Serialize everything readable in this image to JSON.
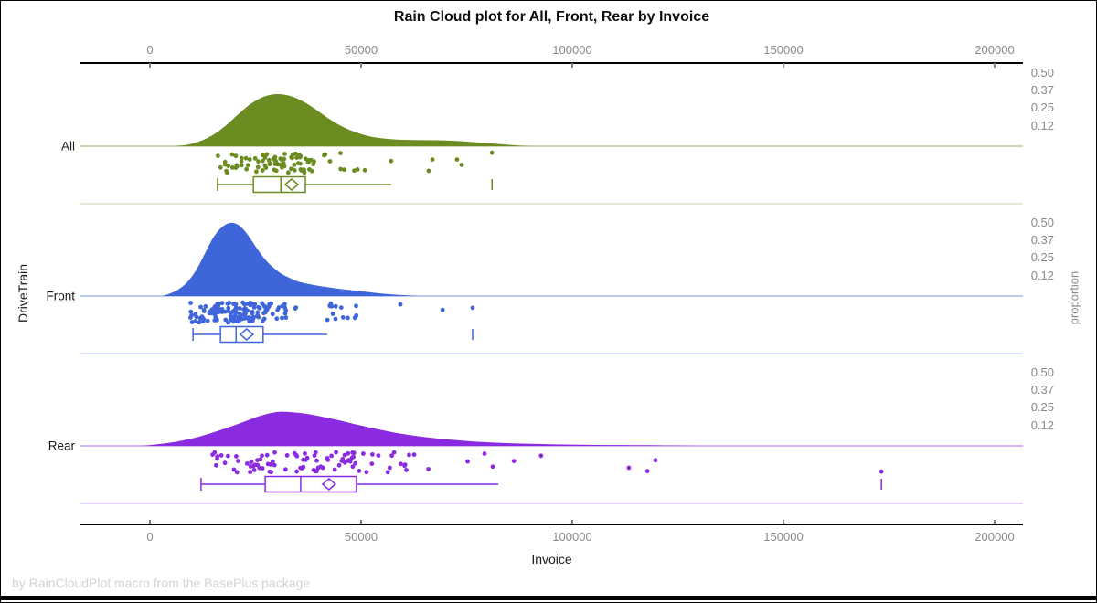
{
  "title": "Rain Cloud plot for All, Front, Rear by Invoice",
  "footnote": "by RainCloudPlot macro from the BasePlus package",
  "axes": {
    "x_label": "Invoice",
    "y_label": "DriveTrain",
    "y2_label": "proportion",
    "x_tick_values": [
      0,
      50000,
      100000,
      150000,
      200000
    ],
    "x_tick_labels": [
      "0",
      "50000",
      "100000",
      "150000",
      "200000"
    ],
    "proportion_tick_labels": [
      "0.50",
      "0.37",
      "0.25",
      "0.12"
    ]
  },
  "colors": {
    "axis_line": "#000000",
    "tick_mark": "#808080",
    "tick_label": "#8a8a8a",
    "category_label": "#1a1a1a",
    "box_fill": "#ffffff"
  },
  "chart_data": {
    "type": "raincloud",
    "x_variable": "Invoice",
    "group_variable": "DriveTrain",
    "x_ticks": [
      0,
      50000,
      100000,
      150000,
      200000
    ],
    "proportion_ticks": [
      0.5,
      0.37,
      0.25,
      0.12
    ],
    "series": [
      {
        "name": "All",
        "color": "#6b8c21",
        "seed": 11,
        "density": [
          [
            6000,
            0
          ],
          [
            9000,
            0.03
          ],
          [
            12000,
            0.1
          ],
          [
            15000,
            0.22
          ],
          [
            18000,
            0.4
          ],
          [
            21000,
            0.62
          ],
          [
            24000,
            0.82
          ],
          [
            27000,
            0.95
          ],
          [
            30000,
            1.0
          ],
          [
            33000,
            0.97
          ],
          [
            36000,
            0.87
          ],
          [
            39000,
            0.72
          ],
          [
            42000,
            0.55
          ],
          [
            45000,
            0.4
          ],
          [
            48000,
            0.29
          ],
          [
            51000,
            0.21
          ],
          [
            54000,
            0.16
          ],
          [
            58000,
            0.13
          ],
          [
            62000,
            0.12
          ],
          [
            66000,
            0.115
          ],
          [
            70000,
            0.11
          ],
          [
            74000,
            0.095
          ],
          [
            78000,
            0.07
          ],
          [
            82000,
            0.045
          ],
          [
            86000,
            0.02
          ],
          [
            90000,
            0
          ]
        ],
        "box": {
          "whisker_low": 16000,
          "q1": 24500,
          "median": 31000,
          "q3": 36800,
          "mean": 33550,
          "whisker_high": 57100,
          "far_outlier": 81000
        },
        "rain": {
          "count": 88,
          "min": 16000,
          "max": 51500,
          "extra_points": [
            57100,
            66000,
            66900,
            72700,
            73800,
            81000
          ]
        }
      },
      {
        "name": "Front",
        "color": "#3f66d9",
        "seed": 7,
        "density": [
          [
            3000,
            0
          ],
          [
            5000,
            0.04
          ],
          [
            7000,
            0.1
          ],
          [
            9000,
            0.2
          ],
          [
            11000,
            0.36
          ],
          [
            13000,
            0.58
          ],
          [
            15000,
            0.8
          ],
          [
            17000,
            0.94
          ],
          [
            19000,
            1.0
          ],
          [
            21000,
            0.97
          ],
          [
            23000,
            0.85
          ],
          [
            25000,
            0.68
          ],
          [
            27000,
            0.52
          ],
          [
            29000,
            0.4
          ],
          [
            31000,
            0.31
          ],
          [
            33000,
            0.25
          ],
          [
            35000,
            0.2
          ],
          [
            38000,
            0.16
          ],
          [
            41000,
            0.13
          ],
          [
            44000,
            0.105
          ],
          [
            47000,
            0.085
          ],
          [
            50000,
            0.065
          ],
          [
            53000,
            0.045
          ],
          [
            56000,
            0.028
          ],
          [
            60000,
            0.012
          ],
          [
            64000,
            0
          ]
        ],
        "box": {
          "whisker_low": 10200,
          "q1": 16700,
          "median": 20400,
          "q3": 26800,
          "mean": 22900,
          "whisker_high": 42000,
          "far_outlier": 76400
        },
        "rain": {
          "count": 155,
          "min": 9500,
          "max": 49500,
          "extra_points": [
            59300,
            69300,
            76400
          ]
        }
      },
      {
        "name": "Rear",
        "color": "#8a2be2",
        "seed": 3,
        "density": [
          [
            -2000,
            0
          ],
          [
            2000,
            0.05
          ],
          [
            6000,
            0.12
          ],
          [
            10000,
            0.22
          ],
          [
            14000,
            0.36
          ],
          [
            18000,
            0.52
          ],
          [
            22000,
            0.7
          ],
          [
            26000,
            0.88
          ],
          [
            30000,
            1.0
          ],
          [
            34000,
            0.99
          ],
          [
            38000,
            0.93
          ],
          [
            42000,
            0.83
          ],
          [
            46000,
            0.72
          ],
          [
            50000,
            0.6
          ],
          [
            54000,
            0.49
          ],
          [
            58000,
            0.39
          ],
          [
            62000,
            0.31
          ],
          [
            66000,
            0.245
          ],
          [
            70000,
            0.195
          ],
          [
            74000,
            0.155
          ],
          [
            78000,
            0.12
          ],
          [
            82000,
            0.095
          ],
          [
            86000,
            0.075
          ],
          [
            90000,
            0.06
          ],
          [
            94000,
            0.05
          ],
          [
            98000,
            0.04
          ],
          [
            102000,
            0.033
          ],
          [
            106000,
            0.027
          ],
          [
            110000,
            0.024
          ],
          [
            114000,
            0.022
          ],
          [
            118000,
            0.018
          ],
          [
            122000,
            0.012
          ],
          [
            126000,
            0.006
          ],
          [
            130000,
            0
          ]
        ],
        "box": {
          "whisker_low": 12100,
          "q1": 27300,
          "median": 35700,
          "q3": 48900,
          "mean": 42400,
          "whisker_high": 82500,
          "far_outlier": 173200
        },
        "rain": {
          "count": 98,
          "min": 11500,
          "max": 100000,
          "extra_points": [
            113400,
            117800,
            119700,
            173200
          ]
        }
      }
    ]
  }
}
